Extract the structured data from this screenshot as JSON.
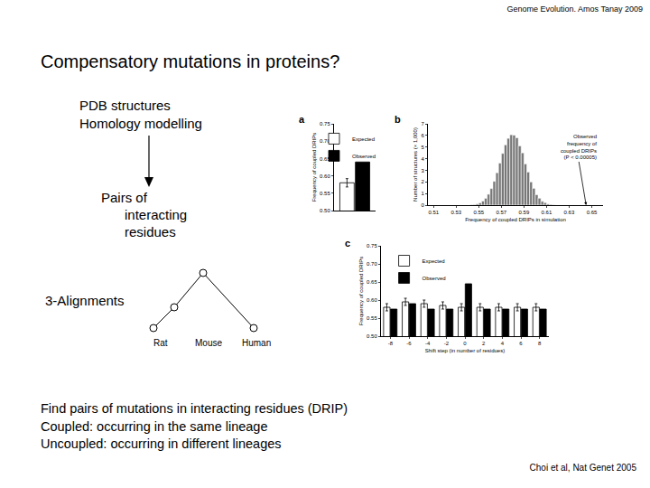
{
  "slide": {
    "header": "Genome Evolution. Amos Tanay 2009",
    "title": "Compensatory mutations in proteins?",
    "inputs": [
      "PDB structures",
      "Homology modelling"
    ],
    "pairs": [
      "Pairs of",
      "interacting",
      "residues"
    ],
    "alignments": "3-Alignments",
    "species": [
      "Rat",
      "Mouse",
      "Human"
    ],
    "notes": [
      "Find pairs of mutations in interacting residues (DRIP)",
      "Coupled: occurring in the same lineage",
      "Uncoupled: occurring in different lineages"
    ],
    "citation": "Choi et al, Nat Genet 2005"
  },
  "chart_data": [
    {
      "panel": "a",
      "type": "bar",
      "y_label": "Frequency of coupled DRIPs",
      "categories": [
        null
      ],
      "series": [
        {
          "name": "Expected",
          "color": "#ffffff",
          "values": [
            0.58
          ],
          "error": [
            0.012
          ]
        },
        {
          "name": "Observed",
          "color": "#000000",
          "values": [
            0.64
          ]
        }
      ],
      "ylim": [
        0.5,
        0.75
      ],
      "yticks": [
        {
          "value": 0.5,
          "label": "0.50"
        },
        {
          "value": 0.55,
          "label": "0.55"
        },
        {
          "value": 0.6,
          "label": "0.60"
        },
        {
          "value": 0.65,
          "label": "0.65"
        },
        {
          "value": 0.7,
          "label": "0.70"
        },
        {
          "value": 0.75,
          "label": "0.75"
        }
      ],
      "legend": "top-left",
      "tick_labels": "y",
      "grid": false
    },
    {
      "panel": "b",
      "type": "histogram",
      "x_label": "Frequency of coupled DRIPs in simulation",
      "y_label": "Number of structures (× 1,000)",
      "bins": [
        0.5425,
        0.545,
        0.5475,
        0.55,
        0.5525,
        0.555,
        0.5575,
        0.56,
        0.5625,
        0.565,
        0.5675,
        0.57,
        0.5725,
        0.575,
        0.5775,
        0.58,
        0.5825,
        0.585,
        0.5875,
        0.59,
        0.5925,
        0.595,
        0.5975,
        0.6,
        0.6025,
        0.605,
        0.6075,
        0.61,
        0.6125,
        0.615,
        0.6175
      ],
      "counts": [
        0.03,
        0.05,
        0.11,
        0.2,
        0.35,
        0.59,
        0.94,
        1.43,
        2.05,
        2.79,
        3.62,
        4.45,
        5.19,
        5.75,
        6.06,
        6.02,
        5.8,
        5.1,
        4.5,
        3.55,
        2.85,
        2.0,
        1.45,
        0.9,
        0.6,
        0.33,
        0.22,
        0.1,
        0.06,
        0.02
      ],
      "color": "#777777",
      "xlim": [
        0.505,
        0.66
      ],
      "xticks": [
        0.51,
        0.53,
        0.55,
        0.57,
        0.59,
        0.61,
        0.63,
        0.65
      ],
      "ylim": [
        0,
        7
      ],
      "yticks": [
        0,
        1,
        2,
        3,
        4,
        5,
        6,
        7
      ],
      "annotation": {
        "text": [
          "Observed",
          "frequency of",
          "coupled DRIPs",
          "(P < 0.00005)"
        ],
        "x": 0.645,
        "y": 0
      },
      "grid": false
    },
    {
      "panel": "c",
      "type": "bar",
      "x_label": "Shift step (in number of residues)",
      "y_label": "Frequency of coupled DRIPs",
      "categories": [
        "-8",
        "-6",
        "-4",
        "-2",
        "0",
        "2",
        "4",
        "6",
        "8"
      ],
      "series": [
        {
          "name": "Expected",
          "color": "#ffffff",
          "values": [
            0.58,
            0.595,
            0.59,
            0.585,
            0.58,
            0.58,
            0.58,
            0.58,
            0.58
          ],
          "error": [
            0.01,
            0.01,
            0.01,
            0.01,
            0.01,
            0.01,
            0.01,
            0.01,
            0.01
          ]
        },
        {
          "name": "Observed",
          "color": "#000000",
          "values": [
            0.575,
            0.59,
            0.575,
            0.575,
            0.645,
            0.575,
            0.575,
            0.575,
            0.575
          ]
        }
      ],
      "ylim": [
        0.5,
        0.75
      ],
      "yticks": [
        {
          "value": 0.5,
          "label": "0.50"
        },
        {
          "value": 0.55,
          "label": "0.55"
        },
        {
          "value": 0.6,
          "label": "0.60"
        },
        {
          "value": 0.65,
          "label": "0.65"
        },
        {
          "value": 0.7,
          "label": "0.70"
        },
        {
          "value": 0.75,
          "label": "0.75"
        }
      ],
      "legend": "top-left",
      "grid": false
    }
  ]
}
